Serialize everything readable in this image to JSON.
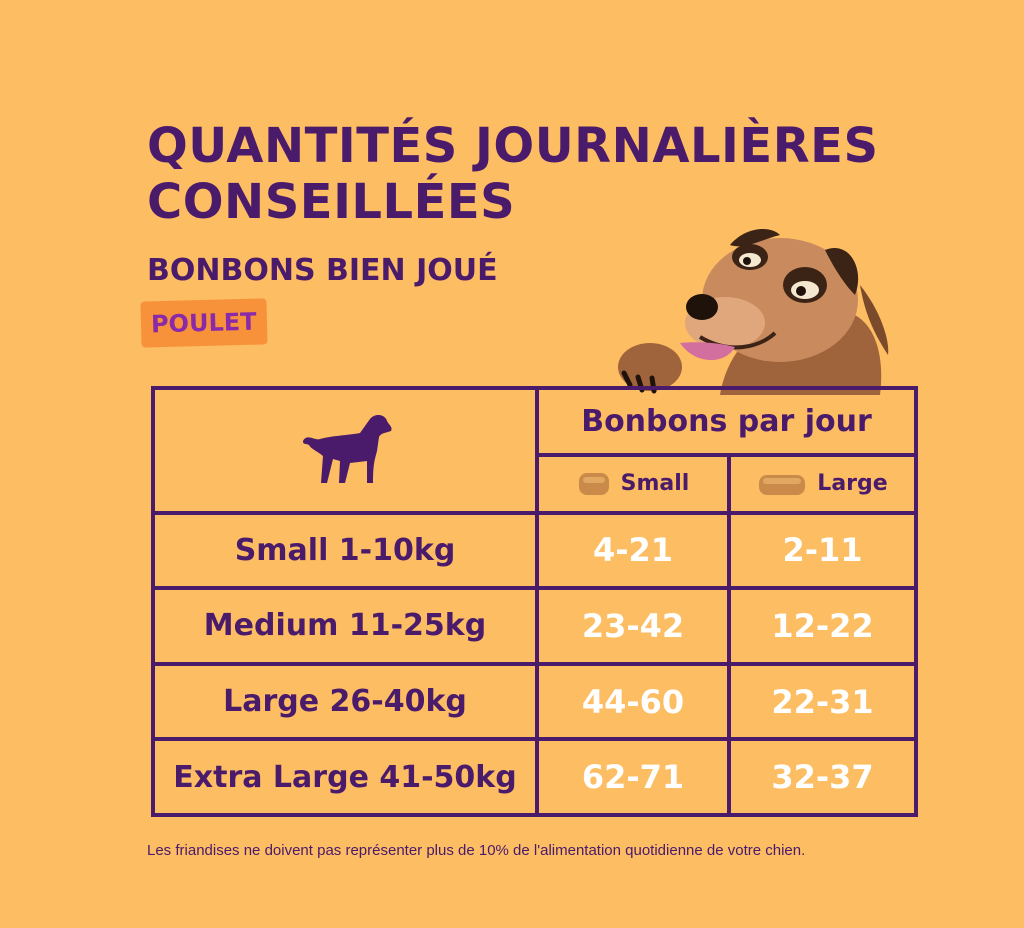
{
  "header": {
    "title": "QUANTITÉS JOURNALIÈRES CONSEILLÉES",
    "subtitle": "BONBONS BIEN JOUÉ",
    "flavor": "POULET"
  },
  "table": {
    "treats_header": "Bonbons par jour",
    "columns": [
      {
        "label": "Small",
        "icon": "small-treat-icon"
      },
      {
        "label": "Large",
        "icon": "large-treat-icon"
      }
    ],
    "rows": [
      {
        "size": "Small 1-10kg",
        "small": "4-21",
        "large": "2-11"
      },
      {
        "size": "Medium 11-25kg",
        "small": "23-42",
        "large": "12-22"
      },
      {
        "size": "Large 26-40kg",
        "small": "44-60",
        "large": "22-31"
      },
      {
        "size": "Extra Large 41-50kg",
        "small": "62-71",
        "large": "32-37"
      }
    ]
  },
  "footnote": "Les friandises ne doivent pas représenter plus de 10% de l'alimentation quotidienne de votre chien.",
  "colors": {
    "background": "#fcbd63",
    "primary": "#4a1a6b",
    "badge": "#f7923a",
    "badge_text": "#8b2aa8",
    "value_text": "#ffffff"
  }
}
